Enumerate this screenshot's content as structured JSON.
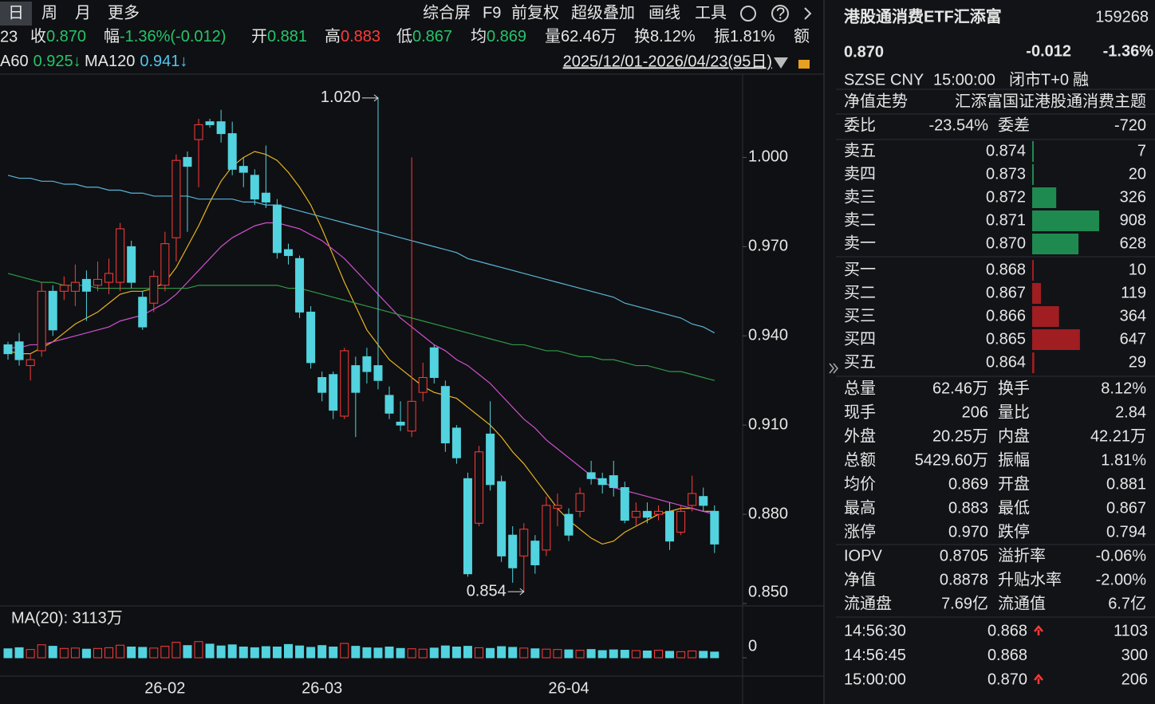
{
  "toolbar": {
    "tabs": [
      "日",
      "周",
      "月",
      "更多"
    ],
    "tools": [
      "综合屏",
      "F9",
      "前复权",
      "超级叠加",
      "画线",
      "工具"
    ]
  },
  "info_bar": {
    "lead": "23",
    "items": [
      {
        "label": "收",
        "value": "0.870",
        "color": "#25c46a"
      },
      {
        "label": "幅",
        "value": "-1.36%(-0.012)",
        "color": "#25c46a"
      },
      {
        "label": "开",
        "value": "0.881",
        "color": "#25c46a"
      },
      {
        "label": "高",
        "value": "0.883",
        "color": "#ff3b3b"
      },
      {
        "label": "低",
        "value": "0.867",
        "color": "#25c46a"
      },
      {
        "label": "均",
        "value": "0.869",
        "color": "#25c46a"
      },
      {
        "label": "量",
        "value": "62.46万",
        "color": "#e6e6e6"
      },
      {
        "label": "换",
        "value": "8.12%",
        "color": "#e6e6e6"
      },
      {
        "label": "振",
        "value": "1.81%",
        "color": "#e6e6e6"
      },
      {
        "label": "额",
        "value": "",
        "color": "#e6e6e6"
      }
    ]
  },
  "ma_legend": [
    {
      "label": "A60",
      "value": "0.925↓",
      "color": "#25c46a"
    },
    {
      "label": "MA120",
      "value": "0.941↓",
      "color": "#4fc6f0"
    }
  ],
  "range_text": "2025/12/01-2026/04/23(95日)",
  "chart": {
    "type": "candlestick",
    "up_color": "#ff3b3b",
    "down_color": "#52d3df",
    "ylim": [
      0.85,
      1.028
    ],
    "yticks": [
      {
        "value": 1.0,
        "label": "1.000"
      },
      {
        "value": 0.97,
        "label": "0.970"
      },
      {
        "value": 0.94,
        "label": "0.940"
      },
      {
        "value": 0.91,
        "label": "0.910"
      },
      {
        "value": 0.88,
        "label": "0.880"
      },
      {
        "value": 0.85,
        "label": "0.850"
      }
    ],
    "high_label": "1.020",
    "low_label": "0.854",
    "categories": [
      null,
      null,
      null,
      null,
      null,
      null,
      null,
      null,
      null,
      null,
      null,
      null,
      null,
      null,
      "26-02",
      null,
      null,
      null,
      null,
      null,
      null,
      null,
      null,
      null,
      null,
      null,
      null,
      null,
      "26-03",
      null,
      null,
      null,
      null,
      null,
      null,
      null,
      null,
      null,
      null,
      null,
      null,
      null,
      null,
      null,
      null,
      null,
      null,
      null,
      null,
      null,
      "26-04",
      null,
      null,
      null,
      null,
      null,
      null,
      null,
      null,
      null,
      null,
      null,
      null,
      null
    ],
    "candles": [
      {
        "open": 0.937,
        "high": 0.938,
        "low": 0.932,
        "close": 0.934
      },
      {
        "open": 0.938,
        "high": 0.941,
        "low": 0.93,
        "close": 0.932
      },
      {
        "open": 0.93,
        "high": 0.934,
        "low": 0.925,
        "close": 0.932
      },
      {
        "open": 0.935,
        "high": 0.958,
        "low": 0.933,
        "close": 0.955
      },
      {
        "open": 0.955,
        "high": 0.957,
        "low": 0.94,
        "close": 0.942
      },
      {
        "open": 0.955,
        "high": 0.96,
        "low": 0.952,
        "close": 0.957
      },
      {
        "open": 0.955,
        "high": 0.964,
        "low": 0.95,
        "close": 0.958
      },
      {
        "open": 0.959,
        "high": 0.962,
        "low": 0.945,
        "close": 0.955
      },
      {
        "open": 0.957,
        "high": 0.965,
        "low": 0.955,
        "close": 0.959
      },
      {
        "open": 0.958,
        "high": 0.966,
        "low": 0.954,
        "close": 0.961
      },
      {
        "open": 0.958,
        "high": 0.978,
        "low": 0.955,
        "close": 0.976
      },
      {
        "open": 0.97,
        "high": 0.972,
        "low": 0.956,
        "close": 0.958
      },
      {
        "open": 0.953,
        "high": 0.955,
        "low": 0.942,
        "close": 0.943
      },
      {
        "open": 0.951,
        "high": 0.962,
        "low": 0.948,
        "close": 0.96
      },
      {
        "open": 0.957,
        "high": 0.975,
        "low": 0.955,
        "close": 0.971
      },
      {
        "open": 0.973,
        "high": 1.001,
        "low": 0.965,
        "close": 0.999
      },
      {
        "open": 1.0,
        "high": 1.002,
        "low": 0.975,
        "close": 0.997
      },
      {
        "open": 1.006,
        "high": 1.013,
        "low": 0.99,
        "close": 1.011
      },
      {
        "open": 1.012,
        "high": 1.013,
        "low": 1.01,
        "close": 1.011
      },
      {
        "open": 1.012,
        "high": 1.016,
        "low": 1.005,
        "close": 1.008
      },
      {
        "open": 1.008,
        "high": 1.012,
        "low": 0.994,
        "close": 0.996
      },
      {
        "open": 0.997,
        "high": 1.0,
        "low": 0.99,
        "close": 0.995
      },
      {
        "open": 0.994,
        "high": 0.996,
        "low": 0.984,
        "close": 0.986
      },
      {
        "open": 0.988,
        "high": 1.004,
        "low": 0.983,
        "close": 0.985
      },
      {
        "open": 0.984,
        "high": 0.986,
        "low": 0.966,
        "close": 0.968
      },
      {
        "open": 0.969,
        "high": 0.971,
        "low": 0.964,
        "close": 0.967
      },
      {
        "open": 0.966,
        "high": 0.967,
        "low": 0.946,
        "close": 0.948
      },
      {
        "open": 0.948,
        "high": 0.95,
        "low": 0.929,
        "close": 0.931
      },
      {
        "open": 0.926,
        "high": 0.928,
        "low": 0.918,
        "close": 0.921
      },
      {
        "open": 0.927,
        "high": 0.928,
        "low": 0.912,
        "close": 0.915
      },
      {
        "open": 0.913,
        "high": 0.936,
        "low": 0.912,
        "close": 0.935
      },
      {
        "open": 0.93,
        "high": 0.933,
        "low": 0.906,
        "close": 0.921
      },
      {
        "open": 0.933,
        "high": 0.936,
        "low": 0.924,
        "close": 0.928
      },
      {
        "open": 0.93,
        "high": 1.02,
        "low": 0.922,
        "close": 0.925
      },
      {
        "open": 0.92,
        "high": 0.923,
        "low": 0.912,
        "close": 0.914
      },
      {
        "open": 0.911,
        "high": 0.918,
        "low": 0.908,
        "close": 0.91
      },
      {
        "open": 0.908,
        "high": 1.0,
        "low": 0.906,
        "close": 0.918
      },
      {
        "open": 0.921,
        "high": 0.931,
        "low": 0.918,
        "close": 0.926
      },
      {
        "open": 0.936,
        "high": 0.937,
        "low": 0.924,
        "close": 0.926
      },
      {
        "open": 0.923,
        "high": 0.925,
        "low": 0.901,
        "close": 0.904
      },
      {
        "open": 0.909,
        "high": 0.91,
        "low": 0.897,
        "close": 0.899
      },
      {
        "open": 0.892,
        "high": 0.894,
        "low": 0.859,
        "close": 0.86
      },
      {
        "open": 0.877,
        "high": 0.903,
        "low": 0.876,
        "close": 0.901
      },
      {
        "open": 0.907,
        "high": 0.918,
        "low": 0.888,
        "close": 0.89
      },
      {
        "open": 0.891,
        "high": 0.893,
        "low": 0.864,
        "close": 0.866
      },
      {
        "open": 0.873,
        "high": 0.876,
        "low": 0.857,
        "close": 0.862
      },
      {
        "open": 0.866,
        "high": 0.877,
        "low": 0.854,
        "close": 0.875
      },
      {
        "open": 0.871,
        "high": 0.873,
        "low": 0.86,
        "close": 0.863
      },
      {
        "open": 0.868,
        "high": 0.886,
        "low": 0.866,
        "close": 0.883
      },
      {
        "open": 0.882,
        "high": 0.887,
        "low": 0.876,
        "close": 0.883
      },
      {
        "open": 0.88,
        "high": 0.882,
        "low": 0.871,
        "close": 0.873
      },
      {
        "open": 0.881,
        "high": 0.889,
        "low": 0.879,
        "close": 0.887
      },
      {
        "open": 0.894,
        "high": 0.898,
        "low": 0.89,
        "close": 0.892
      },
      {
        "open": 0.892,
        "high": 0.894,
        "low": 0.887,
        "close": 0.89
      },
      {
        "open": 0.893,
        "high": 0.898,
        "low": 0.886,
        "close": 0.889
      },
      {
        "open": 0.889,
        "high": 0.891,
        "low": 0.877,
        "close": 0.878
      },
      {
        "open": 0.879,
        "high": 0.884,
        "low": 0.876,
        "close": 0.881
      },
      {
        "open": 0.881,
        "high": 0.884,
        "low": 0.877,
        "close": 0.879
      },
      {
        "open": 0.88,
        "high": 0.883,
        "low": 0.878,
        "close": 0.881
      },
      {
        "open": 0.881,
        "high": 0.884,
        "low": 0.868,
        "close": 0.871
      },
      {
        "open": 0.874,
        "high": 0.883,
        "low": 0.873,
        "close": 0.881
      },
      {
        "open": 0.883,
        "high": 0.893,
        "low": 0.881,
        "close": 0.887
      },
      {
        "open": 0.886,
        "high": 0.889,
        "low": 0.881,
        "close": 0.883
      },
      {
        "open": 0.881,
        "high": 0.883,
        "low": 0.867,
        "close": 0.87
      }
    ],
    "ma_lines": [
      {
        "color": "#e6b422",
        "values": [
          0.935,
          0.934,
          0.934,
          0.936,
          0.938,
          0.941,
          0.944,
          0.946,
          0.948,
          0.951,
          0.954,
          0.955,
          0.955,
          0.956,
          0.958,
          0.963,
          0.97,
          0.977,
          0.985,
          0.992,
          0.997,
          1.0,
          1.002,
          1.001,
          0.999,
          0.995,
          0.99,
          0.984,
          0.976,
          0.967,
          0.958,
          0.95,
          0.942,
          0.937,
          0.932,
          0.929,
          0.926,
          0.923,
          0.921,
          0.92,
          0.919,
          0.916,
          0.913,
          0.91,
          0.906,
          0.901,
          0.897,
          0.892,
          0.887,
          0.882,
          0.878,
          0.875,
          0.872,
          0.87,
          0.871,
          0.874,
          0.876,
          0.878,
          0.88,
          0.881,
          0.882,
          0.882,
          0.881,
          0.881
        ]
      },
      {
        "color": "#d04fd0",
        "values": [
          0.936,
          0.936,
          0.937,
          0.937,
          0.938,
          0.939,
          0.94,
          0.941,
          0.942,
          0.943,
          0.945,
          0.946,
          0.947,
          0.949,
          0.951,
          0.954,
          0.958,
          0.962,
          0.966,
          0.97,
          0.973,
          0.975,
          0.977,
          0.978,
          0.978,
          0.977,
          0.976,
          0.974,
          0.972,
          0.969,
          0.966,
          0.962,
          0.958,
          0.954,
          0.95,
          0.946,
          0.943,
          0.94,
          0.937,
          0.935,
          0.932,
          0.93,
          0.927,
          0.924,
          0.92,
          0.916,
          0.912,
          0.909,
          0.905,
          0.902,
          0.899,
          0.896,
          0.893,
          0.891,
          0.889,
          0.888,
          0.887,
          0.886,
          0.885,
          0.884,
          0.883,
          0.882,
          0.881,
          0.88
        ]
      },
      {
        "color": "#2f9a48",
        "values": [
          0.961,
          0.96,
          0.959,
          0.958,
          0.958,
          0.957,
          0.957,
          0.957,
          0.956,
          0.956,
          0.956,
          0.956,
          0.956,
          0.956,
          0.956,
          0.956,
          0.956,
          0.957,
          0.957,
          0.957,
          0.957,
          0.957,
          0.957,
          0.957,
          0.957,
          0.956,
          0.956,
          0.955,
          0.954,
          0.953,
          0.952,
          0.951,
          0.95,
          0.949,
          0.948,
          0.947,
          0.946,
          0.945,
          0.944,
          0.943,
          0.942,
          0.941,
          0.94,
          0.939,
          0.938,
          0.937,
          0.937,
          0.936,
          0.935,
          0.935,
          0.934,
          0.933,
          0.933,
          0.932,
          0.932,
          0.931,
          0.93,
          0.93,
          0.929,
          0.928,
          0.928,
          0.927,
          0.926,
          0.925
        ]
      },
      {
        "color": "#5ab4d8",
        "values": [
          0.994,
          0.993,
          0.993,
          0.992,
          0.992,
          0.991,
          0.991,
          0.99,
          0.99,
          0.989,
          0.989,
          0.988,
          0.988,
          0.987,
          0.987,
          0.987,
          0.987,
          0.986,
          0.986,
          0.986,
          0.986,
          0.985,
          0.985,
          0.984,
          0.984,
          0.983,
          0.982,
          0.981,
          0.98,
          0.979,
          0.978,
          0.977,
          0.976,
          0.975,
          0.974,
          0.973,
          0.972,
          0.971,
          0.97,
          0.969,
          0.968,
          0.966,
          0.965,
          0.964,
          0.963,
          0.962,
          0.961,
          0.96,
          0.959,
          0.958,
          0.957,
          0.956,
          0.955,
          0.954,
          0.953,
          0.951,
          0.95,
          0.949,
          0.948,
          0.947,
          0.946,
          0.944,
          0.943,
          0.941
        ]
      }
    ],
    "volume": {
      "label": "MA(20): 3113万",
      "ylim": [
        0,
        10000
      ],
      "yticks": [
        0
      ],
      "values": [
        2500,
        2800,
        2300,
        3600,
        3200,
        2600,
        2700,
        2400,
        2600,
        2800,
        3500,
        3000,
        2900,
        2700,
        3200,
        4300,
        3400,
        4500,
        3800,
        3300,
        3600,
        3000,
        2800,
        3100,
        3000,
        3700,
        3300,
        2900,
        3400,
        3000,
        4000,
        3200,
        2800,
        2700,
        3000,
        2600,
        2500,
        2400,
        2700,
        3300,
        3000,
        3200,
        2800,
        2600,
        3100,
        2900,
        2700,
        2500,
        2400,
        2300,
        2200,
        2100,
        2300,
        2000,
        2200,
        2100,
        2000,
        1900,
        2100,
        1800,
        1700,
        1900,
        1800,
        1600
      ]
    }
  },
  "quote": {
    "name": "港股通消费ETF汇添富",
    "code": "159268",
    "price": "0.870",
    "change": "-0.012",
    "change_pct": "-1.36%",
    "meta": [
      "SZSE",
      "CNY",
      "15:00:00",
      "闭市T+0",
      "融"
    ],
    "nav_link": "净值走势",
    "fund_name": "汇添富国证港股通消费主题",
    "weibi_label": "委比",
    "weibi": "-23.54%",
    "weicha_label": "委差",
    "weicha": "-720",
    "asks": [
      {
        "label": "卖五",
        "price": "0.874",
        "volume": 7
      },
      {
        "label": "卖四",
        "price": "0.873",
        "volume": 20
      },
      {
        "label": "卖三",
        "price": "0.872",
        "volume": 326
      },
      {
        "label": "卖二",
        "price": "0.871",
        "volume": 908
      },
      {
        "label": "卖一",
        "price": "0.870",
        "volume": 628
      }
    ],
    "bids": [
      {
        "label": "买一",
        "price": "0.868",
        "volume": 10
      },
      {
        "label": "买二",
        "price": "0.867",
        "volume": 119
      },
      {
        "label": "买三",
        "price": "0.866",
        "volume": 364
      },
      {
        "label": "买四",
        "price": "0.865",
        "volume": 647
      },
      {
        "label": "买五",
        "price": "0.864",
        "volume": 29
      }
    ],
    "ask_color": "#1f8a50",
    "bid_color": "#a01d22",
    "stats": [
      [
        {
          "label": "总量",
          "value": "62.46万",
          "color": "#e6e6e6"
        },
        {
          "label": "换手",
          "value": "8.12%",
          "color": "#e6e6e6"
        }
      ],
      [
        {
          "label": "现手",
          "value": "206",
          "color": "#e6e6e6"
        },
        {
          "label": "量比",
          "value": "2.84",
          "color": "#e6e6e6"
        }
      ],
      [
        {
          "label": "外盘",
          "value": "20.25万",
          "color": "#ff3b3b"
        },
        {
          "label": "内盘",
          "value": "42.21万",
          "color": "#25c46a"
        }
      ],
      [
        {
          "label": "总额",
          "value": "5429.60万",
          "color": "#e6e6e6"
        },
        {
          "label": "振幅",
          "value": "1.81%",
          "color": "#e6e6e6"
        }
      ],
      [
        {
          "label": "均价",
          "value": "0.869",
          "color": "#25c46a"
        },
        {
          "label": "开盘",
          "value": "0.881",
          "color": "#25c46a"
        }
      ],
      [
        {
          "label": "最高",
          "value": "0.883",
          "color": "#ff3b3b"
        },
        {
          "label": "最低",
          "value": "0.867",
          "color": "#25c46a"
        }
      ],
      [
        {
          "label": "涨停",
          "value": "0.970",
          "color": "#ff3b3b"
        },
        {
          "label": "跌停",
          "value": "0.794",
          "color": "#25c46a"
        }
      ],
      [
        {
          "label": "IOPV",
          "value": "0.8705",
          "color": "#25c46a"
        },
        {
          "label": "溢折率",
          "value": "-0.06%",
          "color": "#25c46a"
        }
      ],
      [
        {
          "label": "净值",
          "value": "0.8878",
          "color": "#25c46a"
        },
        {
          "label": "升贴水率",
          "value": "-2.00%",
          "color": "#25c46a"
        }
      ],
      [
        {
          "label": "流通盘",
          "value": "7.69亿",
          "color": "#e6e6e6"
        },
        {
          "label": "流通值",
          "value": "6.7亿",
          "color": "#e6e6e6"
        }
      ]
    ],
    "trades": [
      {
        "time": "14:56:30",
        "price": "0.868",
        "volume": "1103",
        "direction": "up",
        "volume_color": "#ff3b3b"
      },
      {
        "time": "14:56:45",
        "price": "0.868",
        "volume": "300",
        "volume_color": "#ff3b3b"
      },
      {
        "time": "15:00:00",
        "price": "0.870",
        "volume": "206",
        "direction": "up",
        "volume_color": "#25c46a"
      }
    ]
  }
}
